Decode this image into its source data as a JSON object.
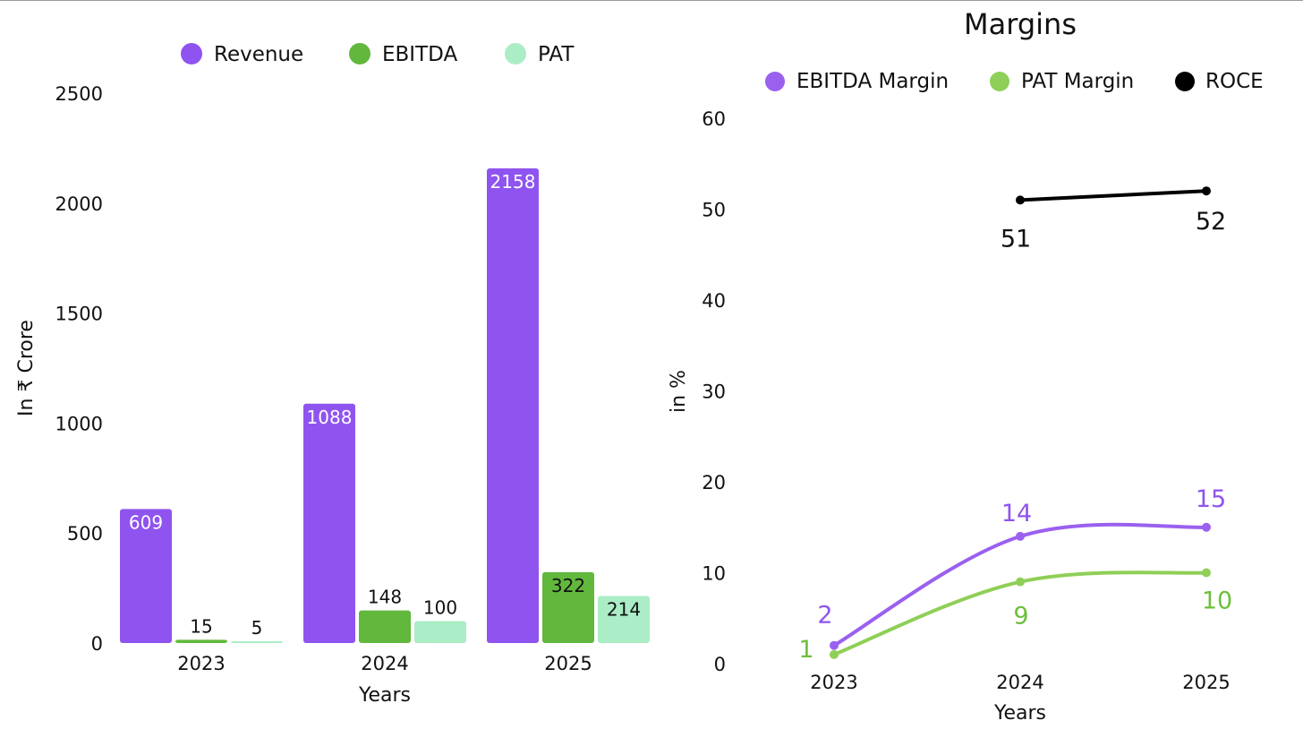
{
  "chart_data": [
    {
      "type": "bar",
      "title": "",
      "xlabel": "Years",
      "ylabel": "In ₹ Crore",
      "categories": [
        "2023",
        "2024",
        "2025"
      ],
      "yticks": [
        "0",
        "500",
        "1000",
        "1500",
        "2000",
        "2500"
      ],
      "ylim": [
        0,
        2500
      ],
      "legend_position": "top",
      "series": [
        {
          "name": "Revenue",
          "color": "#8f54ef",
          "label_color": "#ffffff",
          "values": [
            609,
            1088,
            2158
          ]
        },
        {
          "name": "EBITDA",
          "color": "#62b83d",
          "label_color": "#111111",
          "values": [
            15,
            148,
            322
          ]
        },
        {
          "name": "PAT",
          "color": "#abedc6",
          "label_color": "#111111",
          "values": [
            5,
            100,
            214
          ]
        }
      ]
    },
    {
      "type": "line",
      "title": "Margins",
      "xlabel": "Years",
      "ylabel": "in %",
      "categories": [
        "2023",
        "2024",
        "2025"
      ],
      "yticks": [
        "0",
        "10",
        "20",
        "30",
        "40",
        "50",
        "60"
      ],
      "ylim": [
        0,
        60
      ],
      "legend_position": "top",
      "series": [
        {
          "name": "EBITDA Margin",
          "color": "#9a60ef",
          "label_color": "#8f54ef",
          "values": [
            2,
            14,
            15
          ]
        },
        {
          "name": "PAT Margin",
          "color": "#8fcf57",
          "label_color": "#6cbf3a",
          "values": [
            1,
            9,
            10
          ]
        },
        {
          "name": "ROCE",
          "color": "#000000",
          "label_color": "#111111",
          "values": [
            null,
            51,
            52
          ]
        }
      ]
    }
  ]
}
